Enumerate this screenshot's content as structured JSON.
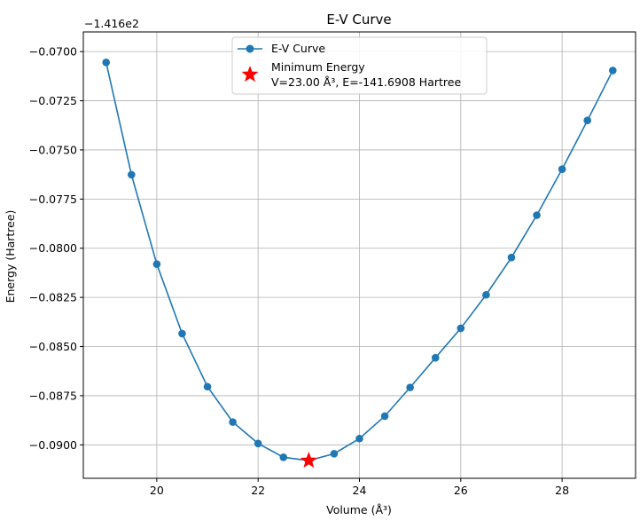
{
  "chart_data": {
    "type": "line",
    "title": "E-V Curve",
    "xlabel": "Volume (Å³)",
    "ylabel": "Energy (Hartree)",
    "offset_label": "−1.416e2",
    "xlim": [
      18.55,
      29.45
    ],
    "ylim": [
      -0.0917,
      -0.069
    ],
    "x_ticks": [
      20,
      22,
      24,
      26,
      28
    ],
    "x_tick_labels": [
      "20",
      "22",
      "24",
      "26",
      "28"
    ],
    "y_ticks": [
      -0.07,
      -0.0725,
      -0.075,
      -0.0775,
      -0.08,
      -0.0825,
      -0.085,
      -0.0875,
      -0.09
    ],
    "y_tick_labels": [
      "−0.0700",
      "−0.0725",
      "−0.0750",
      "−0.0775",
      "−0.0800",
      "−0.0825",
      "−0.0850",
      "−0.0875",
      "−0.0900"
    ],
    "grid": true,
    "legend_position": "top-center",
    "series": [
      {
        "name": "E-V Curve",
        "color": "#1f77b4",
        "marker": "circle",
        "x": [
          19.0,
          19.5,
          20.0,
          20.5,
          21.0,
          21.5,
          22.0,
          22.5,
          23.0,
          23.5,
          24.0,
          24.5,
          25.0,
          25.5,
          26.0,
          26.5,
          27.0,
          27.5,
          28.0,
          28.5,
          29.0
        ],
        "y": [
          -0.07055,
          -0.07626,
          -0.08081,
          -0.08434,
          -0.08704,
          -0.08884,
          -0.08993,
          -0.09063,
          -0.0908,
          -0.09045,
          -0.08968,
          -0.08854,
          -0.08708,
          -0.08557,
          -0.08407,
          -0.08237,
          -0.08047,
          -0.07832,
          -0.07598,
          -0.0735,
          -0.07096
        ]
      }
    ],
    "minimum": {
      "name": "Minimum Energy",
      "label": "V=23.00 Å³, E=-141.6908 Hartree",
      "color": "#ff0000",
      "marker": "star",
      "x": 23.0,
      "y": -0.0908
    }
  }
}
